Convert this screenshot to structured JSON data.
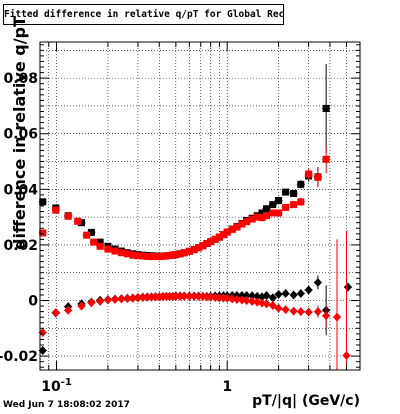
{
  "chart_data": {
    "type": "scatter",
    "title": "Fitted difference in relative q/pT for Global Rec Pion EtapT",
    "xlabel": "pT/|q| (GeV/c)",
    "ylabel": "difference in relative q/pT",
    "xscale": "log",
    "xlim": [
      0.08,
      6.0
    ],
    "ylim": [
      -0.025,
      0.093
    ],
    "xticks": [
      {
        "value": 0.1,
        "label": "10",
        "exp": "-1"
      },
      {
        "value": 1,
        "label": "1",
        "exp": ""
      }
    ],
    "yticks": [
      {
        "value": -0.02,
        "label": "-0.02"
      },
      {
        "value": 0,
        "label": "0"
      },
      {
        "value": 0.02,
        "label": "0.02"
      },
      {
        "value": 0.04,
        "label": "0.04"
      },
      {
        "value": 0.06,
        "label": "0.06"
      },
      {
        "value": 0.08,
        "label": "0.08"
      }
    ],
    "grid": true,
    "series": [
      {
        "color": "#000000",
        "marker": "square",
        "x": [
          0.083,
          0.099,
          0.117,
          0.14,
          0.16,
          0.18,
          0.2,
          0.22,
          0.24,
          0.26,
          0.28,
          0.3,
          0.32,
          0.34,
          0.36,
          0.38,
          0.4,
          0.42,
          0.44,
          0.46,
          0.48,
          0.5,
          0.53,
          0.56,
          0.6,
          0.64,
          0.68,
          0.72,
          0.76,
          0.8,
          0.85,
          0.9,
          0.95,
          1.0,
          1.07,
          1.14,
          1.22,
          1.3,
          1.4,
          1.5,
          1.6,
          1.7,
          1.85,
          2.0,
          2.2,
          2.45,
          2.7,
          3.0,
          3.4,
          3.8
        ],
        "y": [
          0.0355,
          0.0333,
          0.0305,
          0.028,
          0.0245,
          0.021,
          0.0195,
          0.0185,
          0.0178,
          0.0172,
          0.0168,
          0.0165,
          0.0163,
          0.0162,
          0.0161,
          0.016,
          0.016,
          0.016,
          0.0161,
          0.0162,
          0.0163,
          0.0165,
          0.0168,
          0.0172,
          0.0177,
          0.0183,
          0.019,
          0.0197,
          0.0205,
          0.0212,
          0.022,
          0.0228,
          0.0237,
          0.0246,
          0.0257,
          0.0266,
          0.0277,
          0.0288,
          0.0296,
          0.0305,
          0.0315,
          0.033,
          0.0345,
          0.036,
          0.039,
          0.0385,
          0.0418,
          0.0448,
          0.0445,
          0.0691
        ],
        "err": [
          0.0008,
          0.0005,
          0.0004,
          0.0003,
          0.0003,
          0.0003,
          0.0003,
          0.0002,
          0.0002,
          0.0002,
          0.0002,
          0.0002,
          0.0002,
          0.0002,
          0.0002,
          0.0002,
          0.0002,
          0.0002,
          0.0002,
          0.0002,
          0.0002,
          0.0002,
          0.0002,
          0.0002,
          0.0002,
          0.0002,
          0.0002,
          0.0002,
          0.0002,
          0.0002,
          0.0003,
          0.0003,
          0.0003,
          0.0003,
          0.0003,
          0.0003,
          0.0004,
          0.0004,
          0.0004,
          0.0005,
          0.0005,
          0.0006,
          0.0007,
          0.0008,
          0.001,
          0.0012,
          0.0015,
          0.002,
          0.0035,
          0.016
        ]
      },
      {
        "color": "#000000",
        "marker": "diamond",
        "x": [
          0.083,
          0.099,
          0.117,
          0.14,
          0.16,
          0.18,
          0.2,
          0.22,
          0.24,
          0.26,
          0.28,
          0.3,
          0.32,
          0.34,
          0.36,
          0.38,
          0.4,
          0.42,
          0.44,
          0.46,
          0.48,
          0.5,
          0.53,
          0.56,
          0.6,
          0.64,
          0.68,
          0.72,
          0.76,
          0.8,
          0.85,
          0.9,
          0.95,
          1.0,
          1.07,
          1.14,
          1.22,
          1.3,
          1.4,
          1.5,
          1.6,
          1.7,
          1.85,
          2.0,
          2.2,
          2.45,
          2.7,
          3.0,
          3.4,
          3.8,
          5.1
        ],
        "y": [
          -0.018,
          -0.0045,
          -0.0022,
          -0.0012,
          -0.0006,
          0.0001,
          0.0003,
          0.0005,
          0.0007,
          0.0008,
          0.0009,
          0.0011,
          0.0012,
          0.0013,
          0.0013,
          0.0014,
          0.0014,
          0.0015,
          0.0015,
          0.0015,
          0.0015,
          0.0016,
          0.0016,
          0.0016,
          0.0016,
          0.0016,
          0.0016,
          0.0015,
          0.0015,
          0.0015,
          0.0016,
          0.0016,
          0.0017,
          0.0017,
          0.0018,
          0.0018,
          0.0018,
          0.0018,
          0.0017,
          0.0015,
          0.0013,
          0.0018,
          0.001,
          0.0022,
          0.0025,
          0.002,
          0.0025,
          0.0038,
          0.0065,
          -0.0035,
          0.0048
        ],
        "err": [
          0.0012,
          0.0008,
          0.0005,
          0.0004,
          0.0003,
          0.0003,
          0.0002,
          0.0002,
          0.0002,
          0.0002,
          0.0002,
          0.0002,
          0.0002,
          0.0002,
          0.0002,
          0.0002,
          0.0002,
          0.0002,
          0.0002,
          0.0002,
          0.0002,
          0.0002,
          0.0002,
          0.0002,
          0.0002,
          0.0002,
          0.0002,
          0.0002,
          0.0002,
          0.0002,
          0.0002,
          0.0002,
          0.0002,
          0.0003,
          0.0003,
          0.0003,
          0.0003,
          0.0003,
          0.0004,
          0.0004,
          0.0005,
          0.0005,
          0.0006,
          0.0007,
          0.0008,
          0.001,
          0.0012,
          0.0015,
          0.0025,
          0.009,
          0.0015
        ]
      },
      {
        "color": "#ff0000",
        "marker": "square",
        "x": [
          0.083,
          0.099,
          0.117,
          0.133,
          0.15,
          0.165,
          0.18,
          0.2,
          0.22,
          0.24,
          0.26,
          0.28,
          0.3,
          0.32,
          0.34,
          0.36,
          0.38,
          0.4,
          0.42,
          0.44,
          0.46,
          0.48,
          0.5,
          0.53,
          0.56,
          0.6,
          0.64,
          0.68,
          0.72,
          0.76,
          0.8,
          0.85,
          0.9,
          0.95,
          1.0,
          1.07,
          1.14,
          1.22,
          1.3,
          1.4,
          1.5,
          1.6,
          1.7,
          1.85,
          2.0,
          2.2,
          2.45,
          2.7,
          3.0,
          3.4,
          3.8
        ],
        "y": [
          0.0243,
          0.0325,
          0.0303,
          0.0285,
          0.0235,
          0.021,
          0.0195,
          0.0185,
          0.0178,
          0.0172,
          0.0168,
          0.0163,
          0.0161,
          0.016,
          0.0159,
          0.0158,
          0.0158,
          0.0158,
          0.0159,
          0.016,
          0.0162,
          0.0164,
          0.0166,
          0.0168,
          0.0172,
          0.0177,
          0.0183,
          0.019,
          0.0197,
          0.0205,
          0.0212,
          0.022,
          0.0228,
          0.0237,
          0.0246,
          0.0256,
          0.0264,
          0.0275,
          0.0284,
          0.0293,
          0.03,
          0.0298,
          0.0305,
          0.0315,
          0.0315,
          0.0335,
          0.0345,
          0.0355,
          0.0455,
          0.0443,
          0.0508
        ],
        "err": [
          0.0008,
          0.0005,
          0.0004,
          0.0003,
          0.0003,
          0.0003,
          0.0003,
          0.0002,
          0.0002,
          0.0002,
          0.0002,
          0.0002,
          0.0002,
          0.0002,
          0.0002,
          0.0002,
          0.0002,
          0.0002,
          0.0002,
          0.0002,
          0.0002,
          0.0002,
          0.0002,
          0.0002,
          0.0002,
          0.0002,
          0.0002,
          0.0002,
          0.0002,
          0.0002,
          0.0002,
          0.0003,
          0.0003,
          0.0003,
          0.0003,
          0.0003,
          0.0003,
          0.0004,
          0.0004,
          0.0004,
          0.0005,
          0.0005,
          0.0006,
          0.0007,
          0.0008,
          0.001,
          0.0012,
          0.0015,
          0.002,
          0.0035,
          0.005
        ]
      },
      {
        "color": "#ff0000",
        "marker": "diamond",
        "x": [
          0.083,
          0.099,
          0.117,
          0.14,
          0.16,
          0.18,
          0.2,
          0.22,
          0.24,
          0.26,
          0.28,
          0.3,
          0.32,
          0.34,
          0.36,
          0.38,
          0.4,
          0.42,
          0.44,
          0.46,
          0.48,
          0.5,
          0.53,
          0.56,
          0.6,
          0.64,
          0.68,
          0.72,
          0.76,
          0.8,
          0.85,
          0.9,
          0.95,
          1.0,
          1.07,
          1.14,
          1.22,
          1.3,
          1.4,
          1.5,
          1.6,
          1.7,
          1.85,
          2.0,
          2.2,
          2.45,
          2.7,
          3.0,
          3.4,
          3.8,
          4.4,
          5.0
        ],
        "y": [
          -0.0115,
          -0.0043,
          -0.0035,
          -0.002,
          -0.0008,
          -0.0003,
          0.0002,
          0.0004,
          0.0006,
          0.0007,
          0.0008,
          0.001,
          0.0011,
          0.0012,
          0.0012,
          0.0013,
          0.0013,
          0.0014,
          0.0014,
          0.0014,
          0.0014,
          0.0015,
          0.0015,
          0.0015,
          0.0015,
          0.0015,
          0.0015,
          0.0014,
          0.0013,
          0.0012,
          0.0011,
          0.001,
          0.0009,
          0.0008,
          0.0006,
          0.0004,
          0.0002,
          0.0,
          -0.0003,
          -0.0006,
          -0.0009,
          -0.0012,
          -0.0018,
          -0.0028,
          -0.0033,
          -0.0038,
          -0.004,
          -0.0042,
          -0.004,
          -0.0055,
          -0.006,
          -0.0198
        ],
        "err": [
          0.0009,
          0.0006,
          0.0004,
          0.0003,
          0.0003,
          0.0003,
          0.0002,
          0.0002,
          0.0002,
          0.0002,
          0.0002,
          0.0002,
          0.0002,
          0.0002,
          0.0002,
          0.0002,
          0.0002,
          0.0002,
          0.0002,
          0.0002,
          0.0002,
          0.0002,
          0.0002,
          0.0002,
          0.0002,
          0.0002,
          0.0002,
          0.0002,
          0.0002,
          0.0002,
          0.0002,
          0.0002,
          0.0003,
          0.0003,
          0.0003,
          0.0003,
          0.0003,
          0.0004,
          0.0004,
          0.0004,
          0.0005,
          0.0005,
          0.0006,
          0.0007,
          0.0008,
          0.001,
          0.0012,
          0.0015,
          0.0022,
          0.004,
          0.028,
          0.045
        ]
      }
    ]
  },
  "footer": {
    "datestamp": "Wed Jun  7 18:08:02 2017"
  }
}
